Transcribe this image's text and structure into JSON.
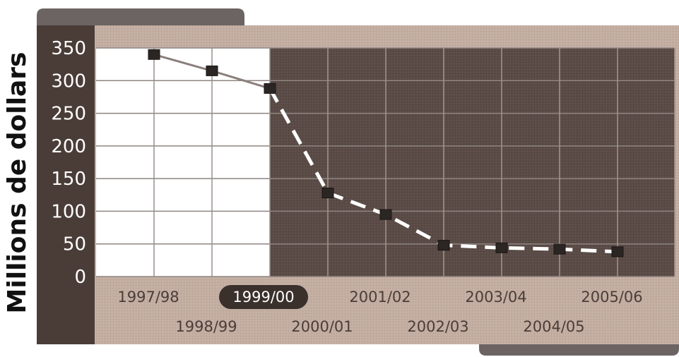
{
  "chart_data": {
    "type": "line",
    "ylabel": "Millions de dollars",
    "xlabel": "",
    "title": "",
    "categories": [
      "1997/98",
      "1998/99",
      "1999/00",
      "2000/01",
      "2001/02",
      "2002/03",
      "2003/04",
      "2004/05",
      "2005/06"
    ],
    "values": [
      340,
      315,
      288,
      128,
      95,
      48,
      44,
      42,
      38
    ],
    "ylim": [
      0,
      350
    ],
    "yticks": [
      "0",
      "50",
      "100",
      "150",
      "200",
      "250",
      "300",
      "350"
    ],
    "grid": true,
    "highlighted_category": "1999/00",
    "style": {
      "solid_segment_until": "1999/00",
      "dashed_segment_from": "1999/00",
      "solid_line_color": "#8a7f7b",
      "dashed_line_color": "#ffffff",
      "marker_color": "#2b2523",
      "past_background": "#ffffff",
      "future_background": "#5a4b46",
      "frame_color": "#c4aea2",
      "axis_panel_color": "#4a3d38",
      "highlight_badge_color": "#3a302c"
    }
  }
}
